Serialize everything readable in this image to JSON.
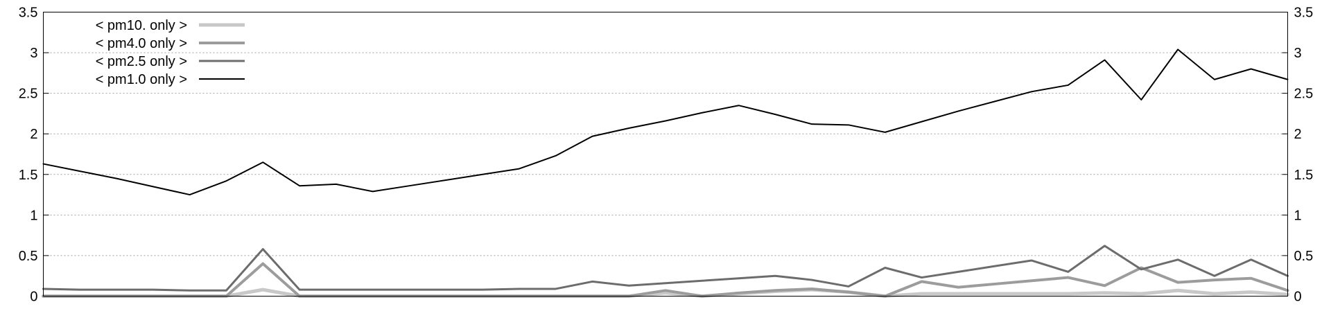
{
  "chart_data": {
    "type": "line",
    "title": "",
    "xlabel": "",
    "ylabel": "",
    "ylim": [
      0,
      3.5
    ],
    "y_ticks": [
      "0",
      "0.5",
      "1",
      "1.5",
      "2",
      "2.5",
      "3",
      "3.5"
    ],
    "y_tick_values": [
      0,
      0.5,
      1,
      1.5,
      2,
      2.5,
      3,
      3.5
    ],
    "right_axis_mirrored": true,
    "grid": "horizontal-dotted",
    "legend_placement": "top-left",
    "x": [
      0,
      1,
      2,
      3,
      4,
      5,
      6,
      7,
      8,
      9,
      10,
      11,
      12,
      13,
      14,
      15,
      16,
      17,
      18,
      19,
      20,
      21,
      22,
      23,
      24,
      25,
      26,
      27,
      28,
      29,
      30,
      31,
      32,
      33,
      34
    ],
    "series": [
      {
        "name": "< pm10. only >",
        "color": "#c8c8c8",
        "width": 5,
        "values": [
          0.0,
          0.0,
          0.0,
          0.0,
          0.0,
          0.0,
          0.08,
          0.0,
          0.0,
          0.0,
          0.0,
          0.0,
          0.0,
          0.0,
          0.0,
          0.0,
          0.0,
          0.04,
          0.0,
          0.03,
          0.06,
          0.08,
          0.05,
          0.0,
          0.03,
          0.03,
          0.03,
          0.03,
          0.03,
          0.04,
          0.03,
          0.07,
          0.03,
          0.05,
          0.02
        ]
      },
      {
        "name": "< pm4.0 only >",
        "color": "#9c9c9c",
        "width": 4,
        "values": [
          0.0,
          0.0,
          0.0,
          0.0,
          0.0,
          0.0,
          0.4,
          0.0,
          0.0,
          0.0,
          0.0,
          0.0,
          0.0,
          0.0,
          0.0,
          0.0,
          0.0,
          0.07,
          0.0,
          0.04,
          0.07,
          0.09,
          0.05,
          0.0,
          0.18,
          0.11,
          0.15,
          0.19,
          0.23,
          0.13,
          0.35,
          0.17,
          0.2,
          0.22,
          0.07
        ]
      },
      {
        "name": "< pm2.5 only >",
        "color": "#6c6c6c",
        "width": 3,
        "values": [
          0.09,
          0.08,
          0.08,
          0.08,
          0.07,
          0.07,
          0.58,
          0.08,
          0.08,
          0.08,
          0.08,
          0.08,
          0.08,
          0.09,
          0.09,
          0.18,
          0.13,
          0.16,
          0.19,
          0.22,
          0.25,
          0.2,
          0.12,
          0.35,
          0.23,
          0.3,
          0.37,
          0.44,
          0.3,
          0.62,
          0.33,
          0.45,
          0.25,
          0.45,
          0.25
        ]
      },
      {
        "name": "< pm1.0 only >",
        "color": "#000000",
        "width": 2,
        "values": [
          1.63,
          1.54,
          1.45,
          1.35,
          1.25,
          1.42,
          1.65,
          1.36,
          1.38,
          1.29,
          1.36,
          1.43,
          1.5,
          1.57,
          1.73,
          1.97,
          2.07,
          2.16,
          2.26,
          2.35,
          2.24,
          2.12,
          2.11,
          2.02,
          2.15,
          2.28,
          2.4,
          2.52,
          2.6,
          2.91,
          2.42,
          3.04,
          2.67,
          2.8,
          2.67
        ]
      }
    ],
    "legend_order": [
      "< pm10. only >",
      "< pm4.0 only >",
      "< pm2.5 only >",
      "< pm1.0 only >"
    ]
  }
}
